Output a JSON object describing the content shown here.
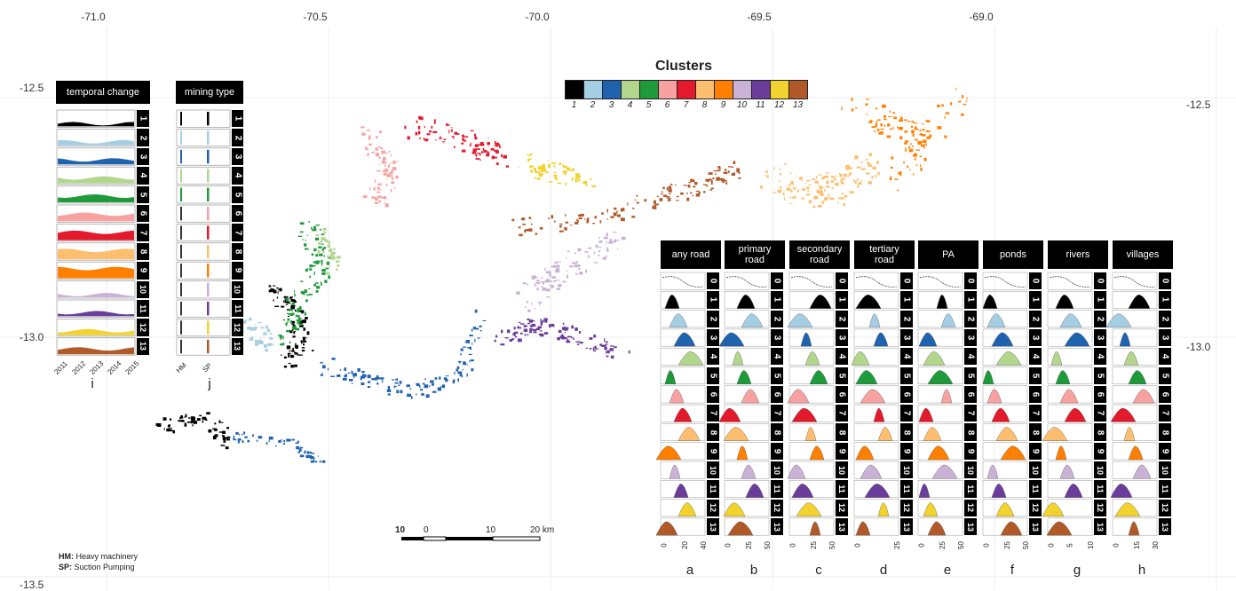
{
  "map": {
    "longitude_labels": [
      "-71.0",
      "-70.5",
      "-70.0",
      "-69.5",
      "-69.0"
    ],
    "latitude_labels_left": [
      "-12.5",
      "-13.0",
      "-13.5"
    ],
    "latitude_labels_right": [
      "-12.5",
      "-13.0"
    ]
  },
  "legend": {
    "title": "Clusters",
    "items": [
      {
        "label": "1",
        "color": "#000000"
      },
      {
        "label": "2",
        "color": "#a6cee3"
      },
      {
        "label": "3",
        "color": "#1f62ad"
      },
      {
        "label": "4",
        "color": "#b2d68c"
      },
      {
        "label": "5",
        "color": "#1e9a3a"
      },
      {
        "label": "6",
        "color": "#f7a1a1"
      },
      {
        "label": "7",
        "color": "#e3192c"
      },
      {
        "label": "8",
        "color": "#fdbf6f"
      },
      {
        "label": "9",
        "color": "#ff7f00"
      },
      {
        "label": "10",
        "color": "#cab2d6"
      },
      {
        "label": "11",
        "color": "#6a3d9a"
      },
      {
        "label": "12",
        "color": "#f2d22e"
      },
      {
        "label": "13",
        "color": "#b15928"
      }
    ]
  },
  "panel_i": {
    "title": "temporal change",
    "letter": "i",
    "x_ticks": [
      "2011",
      "2012",
      "2013",
      "2014",
      "2015"
    ],
    "rows": [
      "1",
      "2",
      "3",
      "4",
      "5",
      "6",
      "7",
      "8",
      "9",
      "10",
      "11",
      "12",
      "13"
    ]
  },
  "panel_j": {
    "title": "mining type",
    "letter": "j",
    "x_ticks": [
      "HM",
      "SP"
    ],
    "rows": [
      "1",
      "2",
      "3",
      "4",
      "5",
      "6",
      "7",
      "8",
      "9",
      "10",
      "11",
      "12",
      "13"
    ]
  },
  "distance_panels": [
    {
      "title": "any road",
      "letter": "a",
      "ticks": [
        "0",
        "20",
        "40"
      ]
    },
    {
      "title": "primary\nroad",
      "letter": "b",
      "ticks": [
        "0",
        "25",
        "50"
      ]
    },
    {
      "title": "secondary\nroad",
      "letter": "c",
      "ticks": [
        "0",
        "25",
        "50"
      ]
    },
    {
      "title": "tertiary\nroad",
      "letter": "d",
      "ticks": [
        "0",
        "25"
      ]
    },
    {
      "title": "PA",
      "letter": "e",
      "ticks": [
        "0",
        "25",
        "50"
      ]
    },
    {
      "title": "ponds",
      "letter": "f",
      "ticks": [
        "0",
        "25",
        "50"
      ]
    },
    {
      "title": "rivers",
      "letter": "g",
      "ticks": [
        "0",
        "5",
        "10"
      ]
    },
    {
      "title": "villages",
      "letter": "h",
      "ticks": [
        "0",
        "15",
        "30"
      ]
    }
  ],
  "distance_rows": [
    "0",
    "1",
    "2",
    "3",
    "4",
    "5",
    "6",
    "7",
    "8",
    "9",
    "10",
    "11",
    "12",
    "13"
  ],
  "scale_bar": {
    "labels": [
      "10",
      "0",
      "10",
      "20 km"
    ]
  },
  "notes": [
    {
      "abbr": "HM:",
      "text": " Heavy machinery"
    },
    {
      "abbr": "SP:",
      "text": " Suction Pumping"
    }
  ]
}
